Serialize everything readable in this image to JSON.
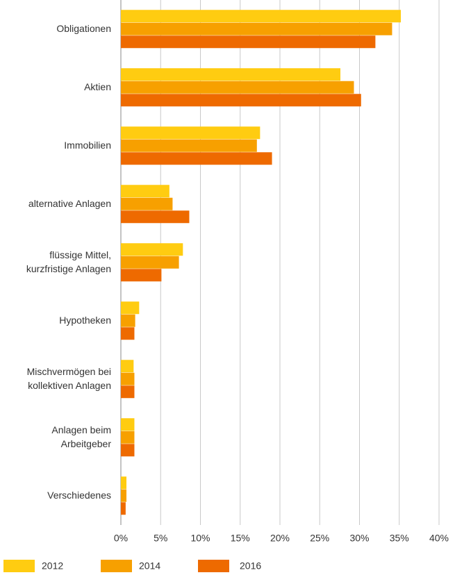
{
  "chart_data": {
    "type": "bar",
    "orientation": "horizontal",
    "categories": [
      "Obligationen",
      "Aktien",
      "Immobilien",
      "alternative Anlagen",
      "flüssige Mittel,\nkurzfristige Anlagen",
      "Hypotheken",
      "Mischvermögen bei\nkollektiven Anlagen",
      "Anlagen beim\nArbeitgeber",
      "Verschiedenes"
    ],
    "series": [
      {
        "name": "2012",
        "color": "#ffcc11",
        "values": [
          35.2,
          27.6,
          17.5,
          6.1,
          7.8,
          2.3,
          1.6,
          1.7,
          0.7
        ]
      },
      {
        "name": "2014",
        "color": "#f7a000",
        "values": [
          34.1,
          29.3,
          17.1,
          6.5,
          7.3,
          1.8,
          1.7,
          1.7,
          0.7
        ]
      },
      {
        "name": "2016",
        "color": "#ee6a00",
        "values": [
          32.0,
          30.2,
          19.0,
          8.6,
          5.1,
          1.7,
          1.7,
          1.7,
          0.6
        ]
      }
    ],
    "xlim": [
      0,
      40
    ],
    "xticks": [
      {
        "value": 0,
        "label": "0%"
      },
      {
        "value": 5,
        "label": "5%"
      },
      {
        "value": 10,
        "label": "10%"
      },
      {
        "value": 15,
        "label": "15%"
      },
      {
        "value": 20,
        "label": "20%"
      },
      {
        "value": 25,
        "label": "25%"
      },
      {
        "value": 30,
        "label": "30%"
      },
      {
        "value": 35,
        "label": "35%"
      },
      {
        "value": 40,
        "label": "40%"
      }
    ],
    "grid": true,
    "legend": "bottom"
  }
}
